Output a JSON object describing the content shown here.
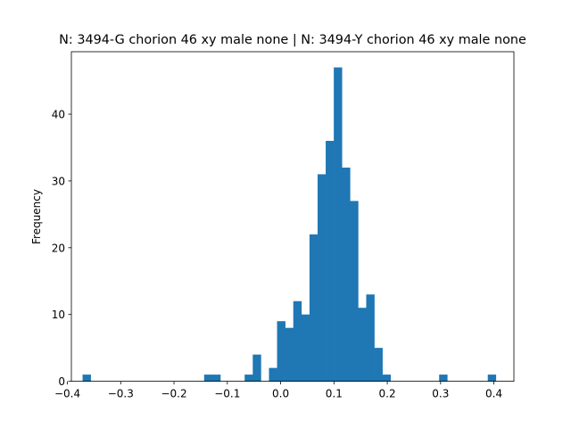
{
  "chart_data": {
    "type": "bar",
    "title": "N: 3494-G chorion 46 xy male none | N: 3494-Y chorion 46 xy male none",
    "xlabel": "",
    "ylabel": "Frequency",
    "xlim": [
      -0.3925,
      0.4375
    ],
    "ylim": [
      0,
      49.35
    ],
    "xticks": [
      -0.4,
      -0.3,
      -0.2,
      -0.1,
      0.0,
      0.1,
      0.2,
      0.3,
      0.4
    ],
    "xtick_labels": [
      "−0.4",
      "−0.3",
      "−0.2",
      "−0.1",
      "0.0",
      "0.1",
      "0.2",
      "0.3",
      "0.4"
    ],
    "yticks": [
      0,
      10,
      20,
      30,
      40
    ],
    "ytick_labels": [
      "0",
      "10",
      "20",
      "30",
      "40"
    ],
    "bar_color": "#1f77b4",
    "bin_start": -0.3715,
    "bin_width": 0.0152,
    "counts": [
      1,
      0,
      0,
      0,
      0,
      0,
      0,
      0,
      0,
      0,
      0,
      0,
      0,
      0,
      0,
      1,
      1,
      0,
      0,
      0,
      1,
      4,
      0,
      2,
      9,
      8,
      12,
      10,
      22,
      31,
      36,
      47,
      32,
      27,
      11,
      13,
      5,
      1,
      0,
      0,
      0,
      0,
      0,
      0,
      1,
      0,
      0,
      0,
      0,
      0,
      1
    ],
    "grid": false,
    "legend": "none"
  }
}
